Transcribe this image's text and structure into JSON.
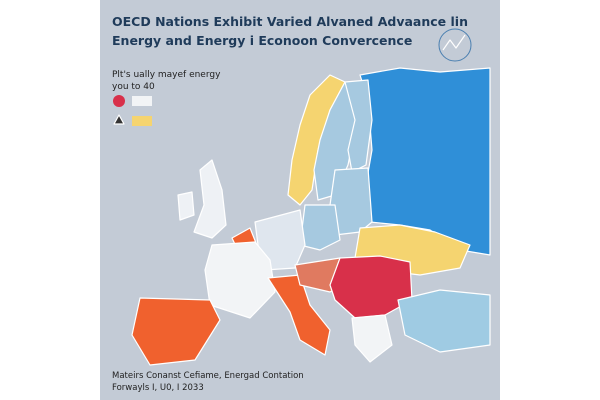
{
  "header": {
    "title": [
      "OECD Nations Exhibit Varied Alvaned Advaance lin",
      "Energy and Energy i Econoon Convercence"
    ]
  },
  "legend": {
    "text": [
      "Plt's ually mayef energy",
      "you to 40"
    ]
  },
  "footer": [
    "Mateirs Conanst Cefiame, Energad Contation",
    "Forwayls I, U0, I 2033"
  ]
}
